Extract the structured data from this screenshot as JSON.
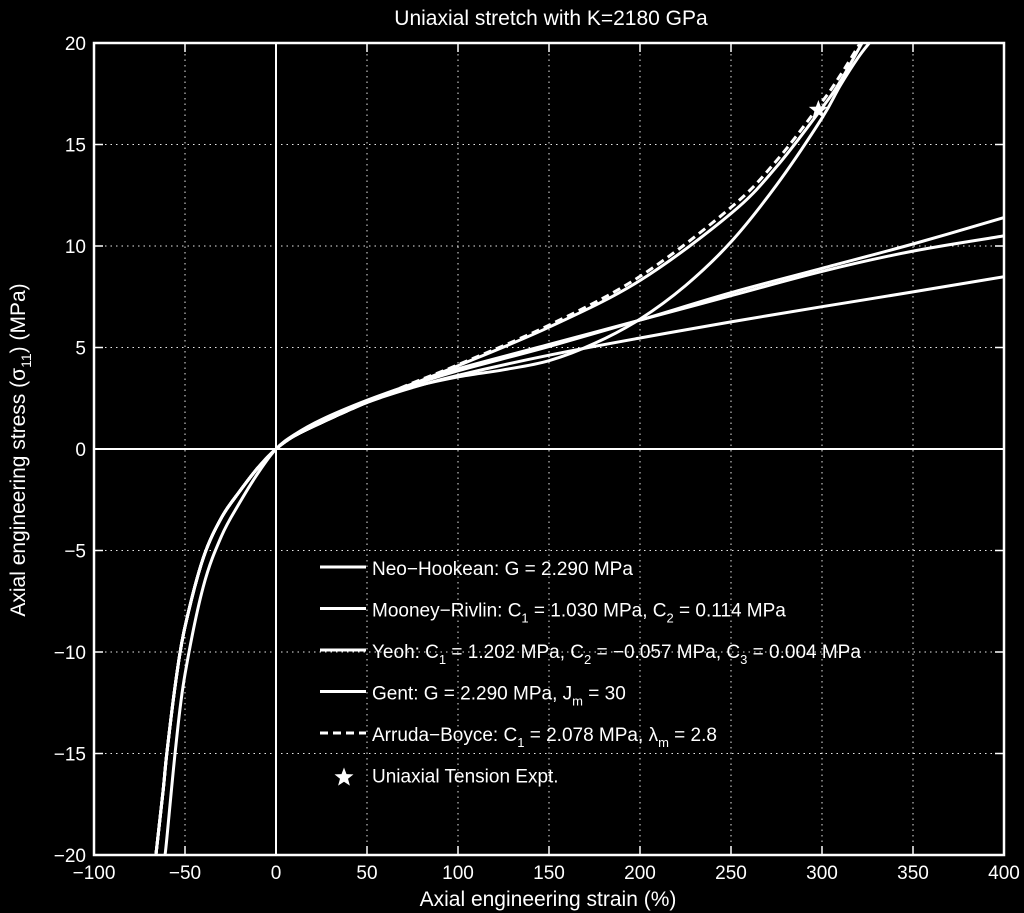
{
  "chart_data": {
    "type": "line",
    "title": "Uniaxial stretch with K=2180 GPa",
    "xlabel": "Axial engineering strain (%)",
    "ylabel": {
      "pre": "Axial engineering stress (",
      "sym": "σ",
      "sub": "11",
      "post": ") (MPa)"
    },
    "xlim": [
      -100,
      400
    ],
    "ylim": [
      -20,
      20
    ],
    "xticks": [
      -100,
      -50,
      0,
      50,
      100,
      150,
      200,
      250,
      300,
      350,
      400
    ],
    "yticks": [
      -20,
      -15,
      -10,
      -5,
      0,
      5,
      10,
      15,
      20
    ],
    "xtick_labels": [
      "−100",
      "−50",
      "0",
      "50",
      "100",
      "150",
      "200",
      "250",
      "300",
      "350",
      "400"
    ],
    "ytick_labels": [
      "−20",
      "−15",
      "−10",
      "−5",
      "0",
      "5",
      "10",
      "15",
      "20"
    ],
    "grid": true,
    "zero_lines": true,
    "legend_position": "lower-right",
    "color": "#ffffff",
    "background": "#000000",
    "series": [
      {
        "name": "Neo-Hookean",
        "style": "solid",
        "legend": [
          {
            "t": "Neo−Hookean: G = 2.290 MPa"
          }
        ],
        "x": [
          -66,
          -62,
          -60,
          -55,
          -50,
          -40,
          -30,
          -20,
          -10,
          0,
          10,
          25,
          50,
          75,
          100,
          150,
          200,
          250,
          300,
          350,
          400
        ],
        "y": [
          -20,
          -16.8,
          -15,
          -11.4,
          -8.76,
          -5.38,
          -3.39,
          -2.09,
          -0.93,
          0,
          0.64,
          1.3,
          2.29,
          3.03,
          3.63,
          4.62,
          5.47,
          6.26,
          7.01,
          7.74,
          8.49
        ]
      },
      {
        "name": "Mooney-Rivlin",
        "style": "solid",
        "legend": [
          {
            "t": "Mooney−Rivlin: C"
          },
          {
            "sub": "1"
          },
          {
            "t": " = 1.030 MPa, C"
          },
          {
            "sub": "2"
          },
          {
            "t": " = 0.114 MPa"
          }
        ],
        "x": [
          -61,
          -60,
          -55,
          -50,
          -40,
          -30,
          -20,
          -10,
          0,
          10,
          25,
          50,
          75,
          100,
          150,
          200,
          250,
          300,
          350,
          400
        ],
        "y": [
          -20,
          -19.2,
          -14.6,
          -11.1,
          -6.8,
          -4.3,
          -2.65,
          -1.2,
          0,
          0.7,
          1.45,
          2.4,
          3.2,
          3.95,
          5.15,
          6.35,
          7.55,
          8.75,
          9.75,
          10.5
        ]
      },
      {
        "name": "Yeoh",
        "style": "solid",
        "legend": [
          {
            "t": "Yeoh: C"
          },
          {
            "sub": "1"
          },
          {
            "t": " = 1.202 MPa, C"
          },
          {
            "sub": "2"
          },
          {
            "t": " = −0.057 MPa, C"
          },
          {
            "sub": "3"
          },
          {
            "t": " = 0.004 MPa"
          }
        ],
        "x": [
          -66,
          -62,
          -60,
          -55,
          -50,
          -40,
          -30,
          -20,
          -10,
          0,
          10,
          25,
          50,
          75,
          100,
          125,
          150,
          175,
          200,
          225,
          250,
          275,
          300,
          310,
          320,
          326
        ],
        "y": [
          -20,
          -16.8,
          -15,
          -11.4,
          -8.76,
          -5.38,
          -3.39,
          -2.09,
          -0.93,
          0,
          0.64,
          1.3,
          2.3,
          3.05,
          3.55,
          3.9,
          4.35,
          5.2,
          6.4,
          8.05,
          10.2,
          13,
          16.3,
          17.9,
          19.3,
          20
        ]
      },
      {
        "name": "Gent",
        "style": "solid",
        "legend": [
          {
            "t": "Gent: G = 2.290 MPa, J"
          },
          {
            "sub": "m"
          },
          {
            "t": " = 30"
          }
        ],
        "x": [
          -66,
          -62,
          -60,
          -55,
          -50,
          -40,
          -30,
          -20,
          -10,
          0,
          10,
          25,
          50,
          75,
          100,
          150,
          200,
          250,
          300,
          350,
          400
        ],
        "y": [
          -20,
          -16.8,
          -15,
          -11.4,
          -8.76,
          -5.38,
          -3.39,
          -2.09,
          -0.93,
          0,
          0.64,
          1.3,
          2.3,
          3.15,
          3.85,
          5.05,
          6.35,
          7.7,
          8.9,
          10.1,
          11.4
        ]
      },
      {
        "name": "Arruda-Boyce (solid)",
        "style": "solid",
        "legend": null,
        "x": [
          -66,
          -62,
          -60,
          -55,
          -50,
          -40,
          -30,
          -20,
          -10,
          0,
          10,
          25,
          50,
          75,
          100,
          150,
          200,
          250,
          275,
          300,
          310,
          322
        ],
        "y": [
          -20,
          -16.8,
          -15,
          -11.4,
          -8.76,
          -5.38,
          -3.39,
          -2.09,
          -0.93,
          0,
          0.64,
          1.3,
          2.3,
          3.2,
          4.1,
          6,
          8.3,
          11.6,
          13.9,
          16.8,
          18.1,
          20
        ]
      },
      {
        "name": "Arruda-Boyce",
        "style": "dashed",
        "legend": [
          {
            "t": "Arruda−Boyce: C"
          },
          {
            "sub": "1"
          },
          {
            "t": " = 2.078 MPa, "
          },
          {
            "t": "λ"
          },
          {
            "sub": "m"
          },
          {
            "t": " = 2.8"
          }
        ],
        "x": [
          -66,
          -62,
          -60,
          -55,
          -50,
          -40,
          -30,
          -20,
          -10,
          0,
          10,
          25,
          50,
          75,
          100,
          150,
          200,
          250,
          275,
          300,
          310,
          321
        ],
        "y": [
          -20,
          -16.8,
          -15,
          -11.4,
          -8.76,
          -5.38,
          -3.39,
          -2.09,
          -0.93,
          0,
          0.64,
          1.3,
          2.3,
          3.25,
          4.15,
          6.1,
          8.5,
          11.9,
          14.2,
          17.1,
          18.4,
          20
        ]
      }
    ],
    "points": [
      {
        "name": "Uniaxial Tension Expt.",
        "marker": "star",
        "legend": [
          {
            "t": "Uniaxial Tension Expt."
          }
        ],
        "x": [
          298
        ],
        "y": [
          16.7
        ]
      }
    ]
  }
}
